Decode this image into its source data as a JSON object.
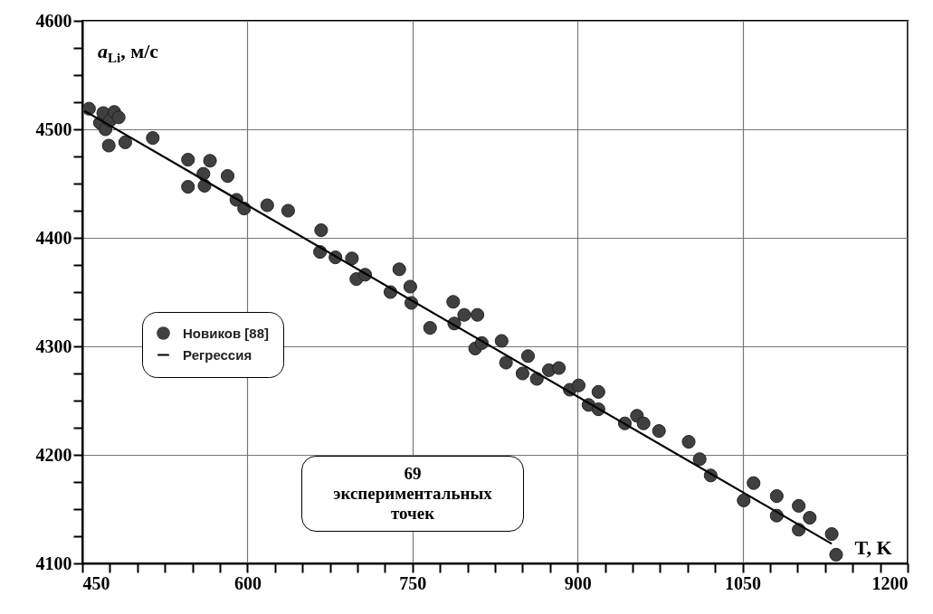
{
  "chart_data": {
    "type": "scatter",
    "xlabel": "T, K",
    "ylabel": "a$_{Li}$, м/с",
    "series": [
      {
        "name": "Новиков [88]",
        "type": "scatter",
        "marker": "circle",
        "color": "#404040",
        "x": [
          456,
          466,
          469,
          471,
          475,
          474,
          479,
          483,
          489,
          514,
          546,
          546,
          560,
          561,
          566,
          582,
          590,
          597,
          618,
          637,
          667,
          666,
          680,
          695,
          699,
          707,
          730,
          738,
          748,
          749,
          766,
          787,
          788,
          797,
          809,
          807,
          813,
          831,
          835,
          855,
          850,
          863,
          874,
          883,
          893,
          901,
          919,
          910,
          919,
          943,
          954,
          960,
          974,
          1001,
          1011,
          1021,
          1051,
          1060,
          1081,
          1081,
          1101,
          1101,
          1111,
          1131,
          1135
        ],
        "values": [
          4519,
          4506,
          4515,
          4500,
          4508,
          4485,
          4516,
          4511,
          4488,
          4492,
          4472,
          4447,
          4459,
          4448,
          4471,
          4457,
          4435,
          4427,
          4430,
          4425,
          4407,
          4387,
          4382,
          4381,
          4362,
          4366,
          4350,
          4371,
          4355,
          4340,
          4317,
          4341,
          4321,
          4329,
          4329,
          4298,
          4303,
          4305,
          4285,
          4291,
          4275,
          4270,
          4278,
          4280,
          4260,
          4264,
          4258,
          4246,
          4242,
          4229,
          4236,
          4229,
          4222,
          4212,
          4196,
          4181,
          4158,
          4174,
          4162,
          4144,
          4153,
          4131,
          4142,
          4127,
          4108
        ]
      },
      {
        "name": "Регрессия",
        "type": "line",
        "marker": "none",
        "color": "#000000",
        "x": [
          452,
          1131
        ],
        "values": [
          4517,
          4118
        ]
      }
    ],
    "xlim": [
      450,
      1200
    ],
    "xticks": [
      450,
      {
        "value": 475,
        "label": null
      },
      {
        "value": 500,
        "label": null
      },
      {
        "value": 525,
        "label": null
      },
      {
        "value": 550,
        "label": null
      },
      {
        "value": 575,
        "label": null
      },
      600,
      {
        "value": 625,
        "label": null
      },
      {
        "value": 650,
        "label": null
      },
      {
        "value": 675,
        "label": null
      },
      {
        "value": 700,
        "label": null
      },
      {
        "value": 725,
        "label": null
      },
      750,
      {
        "value": 775,
        "label": null
      },
      {
        "value": 800,
        "label": null
      },
      {
        "value": 825,
        "label": null
      },
      {
        "value": 850,
        "label": null
      },
      {
        "value": 875,
        "label": null
      },
      900,
      {
        "value": 925,
        "label": null
      },
      {
        "value": 950,
        "label": null
      },
      {
        "value": 975,
        "label": null
      },
      {
        "value": 1000,
        "label": null
      },
      {
        "value": 1025,
        "label": null
      },
      1050,
      {
        "value": 1075,
        "label": null
      },
      {
        "value": 1100,
        "label": null
      },
      {
        "value": 1125,
        "label": null
      },
      {
        "value": 1150,
        "label": null
      },
      {
        "value": 1175,
        "label": null
      },
      1200
    ],
    "ylim": [
      4100,
      4600
    ],
    "yticks": [
      4100,
      {
        "value": 4125,
        "label": null
      },
      {
        "value": 4150,
        "label": null
      },
      {
        "value": 4175,
        "label": null
      },
      4200,
      {
        "value": 4225,
        "label": null
      },
      {
        "value": 4250,
        "label": null
      },
      {
        "value": 4275,
        "label": null
      },
      4300,
      {
        "value": 4325,
        "label": null
      },
      {
        "value": 4350,
        "label": null
      },
      {
        "value": 4375,
        "label": null
      },
      4400,
      {
        "value": 4425,
        "label": null
      },
      {
        "value": 4450,
        "label": null
      },
      {
        "value": 4475,
        "label": null
      },
      4500,
      {
        "value": 4525,
        "label": null
      },
      {
        "value": 4550,
        "label": null
      },
      {
        "value": 4575,
        "label": null
      },
      4600
    ],
    "grid": true,
    "legend": "left",
    "annotations": [
      "69 экспериментальных точек"
    ]
  }
}
